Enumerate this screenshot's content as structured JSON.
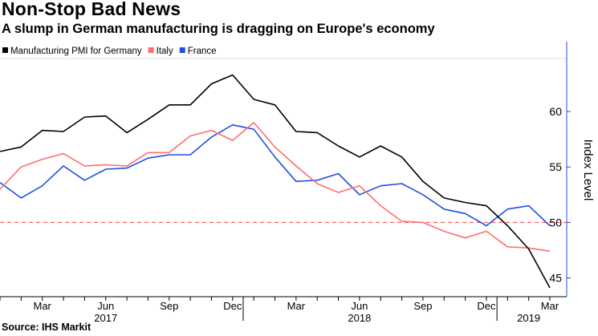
{
  "header": {
    "title": "Non-Stop Bad News",
    "subtitle": "A slump in German manufacturing is dragging on Europe's economy"
  },
  "footer": {
    "source": "Source: IHS Markit"
  },
  "colors": {
    "germany": "#000000",
    "italy": "#ff6e6e",
    "france": "#1f4fe0",
    "reference": "#ff3c3c",
    "axis": "#1f4fe0"
  },
  "chart_data": {
    "type": "line",
    "title": "Non-Stop Bad News",
    "subtitle": "A slump in German manufacturing is dragging on Europe's economy",
    "xlabel": "",
    "ylabel": "Index Level",
    "ylim": [
      43.3,
      66.3
    ],
    "yticks": [
      45,
      50,
      55,
      60
    ],
    "reference_line": 50,
    "grid": false,
    "legend": "top-left",
    "x": [
      "2017-01",
      "2017-02",
      "2017-03",
      "2017-04",
      "2017-05",
      "2017-06",
      "2017-07",
      "2017-08",
      "2017-09",
      "2017-10",
      "2017-11",
      "2017-12",
      "2018-01",
      "2018-02",
      "2018-03",
      "2018-04",
      "2018-05",
      "2018-06",
      "2018-07",
      "2018-08",
      "2018-09",
      "2018-10",
      "2018-11",
      "2018-12",
      "2019-01",
      "2019-02",
      "2019-03"
    ],
    "x_tick_labels": [
      "Mar",
      "Jun",
      "Sep",
      "Dec",
      "Mar",
      "Jun",
      "Sep",
      "Dec",
      "Mar"
    ],
    "x_tick_months": [
      "2017-03",
      "2017-06",
      "2017-09",
      "2017-12",
      "2018-03",
      "2018-06",
      "2018-09",
      "2018-12",
      "2019-03"
    ],
    "year_labels": [
      {
        "label": "2017",
        "center": "2017-06"
      },
      {
        "label": "2018",
        "center": "2018-06"
      },
      {
        "label": "2019",
        "center": "2019-02"
      }
    ],
    "series": [
      {
        "name": "Manufacturing PMI for Germany",
        "color": "#000000",
        "values": [
          56.4,
          56.8,
          58.3,
          58.2,
          59.5,
          59.6,
          58.1,
          59.3,
          60.6,
          60.6,
          62.5,
          63.3,
          61.1,
          60.6,
          58.2,
          58.1,
          56.9,
          55.9,
          56.9,
          55.9,
          53.7,
          52.2,
          51.8,
          51.5,
          49.7,
          47.6,
          44.1
        ]
      },
      {
        "name": "Italy",
        "color": "#ff6e6e",
        "values": [
          53.0,
          55.0,
          55.7,
          56.2,
          55.1,
          55.2,
          55.1,
          56.3,
          56.3,
          57.8,
          58.3,
          57.4,
          59.0,
          56.8,
          55.1,
          53.5,
          52.7,
          53.3,
          51.5,
          50.1,
          50.0,
          49.2,
          48.6,
          49.2,
          47.8,
          47.7,
          47.4
        ]
      },
      {
        "name": "France",
        "color": "#1f4fe0",
        "values": [
          53.6,
          52.2,
          53.3,
          55.1,
          53.8,
          54.8,
          54.9,
          55.8,
          56.1,
          56.1,
          57.7,
          58.8,
          58.4,
          55.9,
          53.7,
          53.8,
          54.4,
          52.5,
          53.3,
          53.5,
          52.5,
          51.2,
          50.8,
          49.7,
          51.2,
          51.5,
          49.7
        ]
      }
    ]
  }
}
